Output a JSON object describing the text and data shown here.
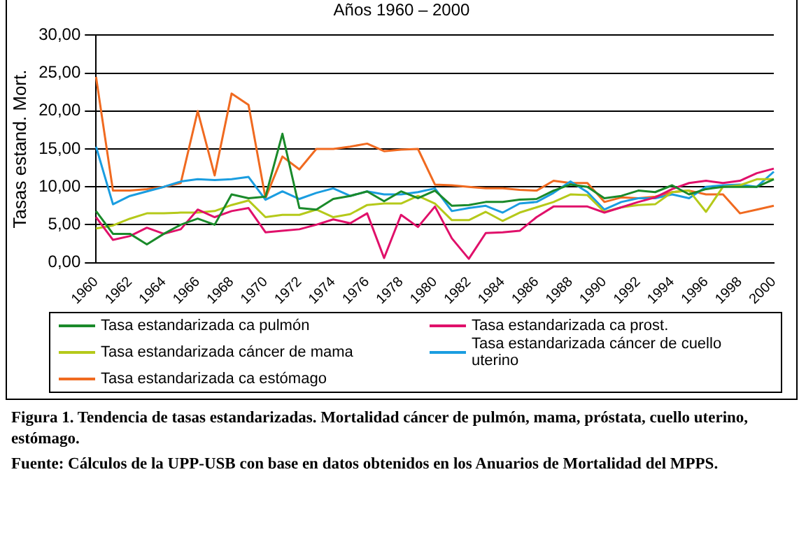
{
  "chart_data": {
    "type": "line",
    "title": "Años 1960 – 2000",
    "ylabel": "Tasas estand. Mort.",
    "categories": [
      "1960",
      null,
      "1962",
      null,
      "1964",
      null,
      "1966",
      null,
      "1968",
      null,
      "1970",
      null,
      "1972",
      null,
      "1974",
      null,
      "1976",
      null,
      "1978",
      null,
      "1980",
      null,
      "1982",
      null,
      "1984",
      null,
      "1986",
      null,
      "1988",
      null,
      "1990",
      null,
      "1992",
      null,
      "1994",
      null,
      "1996",
      null,
      "1998",
      null,
      "2000"
    ],
    "ylim": [
      0,
      30
    ],
    "yticks": [
      {
        "value": 0,
        "label": "0,00"
      },
      {
        "value": 5,
        "label": "5,00"
      },
      {
        "value": 10,
        "label": "10,00"
      },
      {
        "value": 15,
        "label": "15,00"
      },
      {
        "value": 20,
        "label": "20,00"
      },
      {
        "value": 25,
        "label": "25,00"
      },
      {
        "value": 30,
        "label": "30,00"
      }
    ],
    "grid": "y",
    "legend": "bottom",
    "marker": "none",
    "line_style": "solid",
    "series": [
      {
        "name": "Tasa estandarizada ca pulmón",
        "color": "#1a8a2a",
        "values": [
          6.8,
          3.8,
          3.8,
          2.4,
          3.8,
          5,
          5.8,
          5,
          9,
          8.5,
          8.7,
          17,
          7.2,
          7,
          8.4,
          8.8,
          9.4,
          8.1,
          9.4,
          8.5,
          9.5,
          7.5,
          7.6,
          8,
          8,
          8.3,
          8.4,
          9.5,
          10.3,
          10,
          8.5,
          8.8,
          9.5,
          9.3,
          10.2,
          9,
          9.7,
          10,
          10,
          10,
          11
        ]
      },
      {
        "name": "Tasa estandarizada ca prost.",
        "color": "#e0106a",
        "values": [
          6,
          3,
          3.5,
          4.6,
          3.8,
          4.4,
          7,
          6,
          6.8,
          7.2,
          4,
          4.2,
          4.4,
          5,
          5.7,
          5.2,
          6.5,
          0.6,
          6.3,
          4.7,
          7.4,
          3.2,
          0.5,
          3.9,
          4,
          4.2,
          6,
          7.4,
          7.4,
          7.4,
          6.6,
          7.3,
          8,
          8.6,
          9.7,
          10.5,
          10.8,
          10.5,
          10.8,
          11.8,
          12.4
        ]
      },
      {
        "name": "Tasa estandarizada cáncer de mama",
        "color": "#b5c91a",
        "values": [
          4.5,
          4.9,
          5.8,
          6.5,
          6.5,
          6.6,
          6.6,
          6.8,
          7.6,
          8.2,
          6,
          6.3,
          6.3,
          7,
          6,
          6.4,
          7.6,
          7.8,
          7.8,
          8.8,
          7.8,
          5.6,
          5.6,
          6.7,
          5.5,
          6.6,
          7.3,
          8,
          9,
          8.9,
          6.7,
          7.3,
          7.6,
          7.7,
          9.3,
          9.5,
          6.7,
          10,
          10.2,
          11,
          11
        ]
      },
      {
        "name": "Tasa estandarizada cáncer de cuello uterino",
        "color": "#1a9de0",
        "values": [
          15.3,
          7.7,
          8.8,
          9.4,
          10,
          10.7,
          11,
          10.9,
          11,
          11.3,
          8.3,
          9.4,
          8.4,
          9.2,
          9.8,
          8.8,
          9.4,
          9,
          9,
          9.3,
          9.8,
          6.8,
          7.2,
          7.5,
          6.6,
          7.8,
          8,
          9.2,
          10.7,
          9.3,
          7,
          8,
          8.5,
          8.5,
          9,
          8.5,
          10,
          10.2,
          10.3,
          10,
          12
        ]
      },
      {
        "name": "Tasa estandarizada ca estómago",
        "color": "#f06a20",
        "values": [
          24.5,
          9.5,
          9.5,
          9.7,
          10,
          10.5,
          20,
          11.5,
          22.3,
          20.8,
          8.5,
          14,
          12.3,
          15,
          15,
          15.3,
          15.7,
          14.7,
          14.9,
          15,
          10.3,
          10.2,
          10,
          9.8,
          9.8,
          9.6,
          9.5,
          10.8,
          10.5,
          10.5,
          8,
          8.6,
          8.5,
          8.7,
          9.3,
          9.5,
          9,
          9,
          6.5,
          7,
          7.5
        ]
      }
    ],
    "annotations": [
      "Figura 1.  Tendencia de tasas estandarizadas.  Mortalidad cáncer de pulmón, mama, próstata, cuello uterino, estómago.",
      "Fuente: Cálculos de la UPP-USB con base en datos obtenidos en los Anuarios de Mortalidad del MPPS."
    ]
  }
}
